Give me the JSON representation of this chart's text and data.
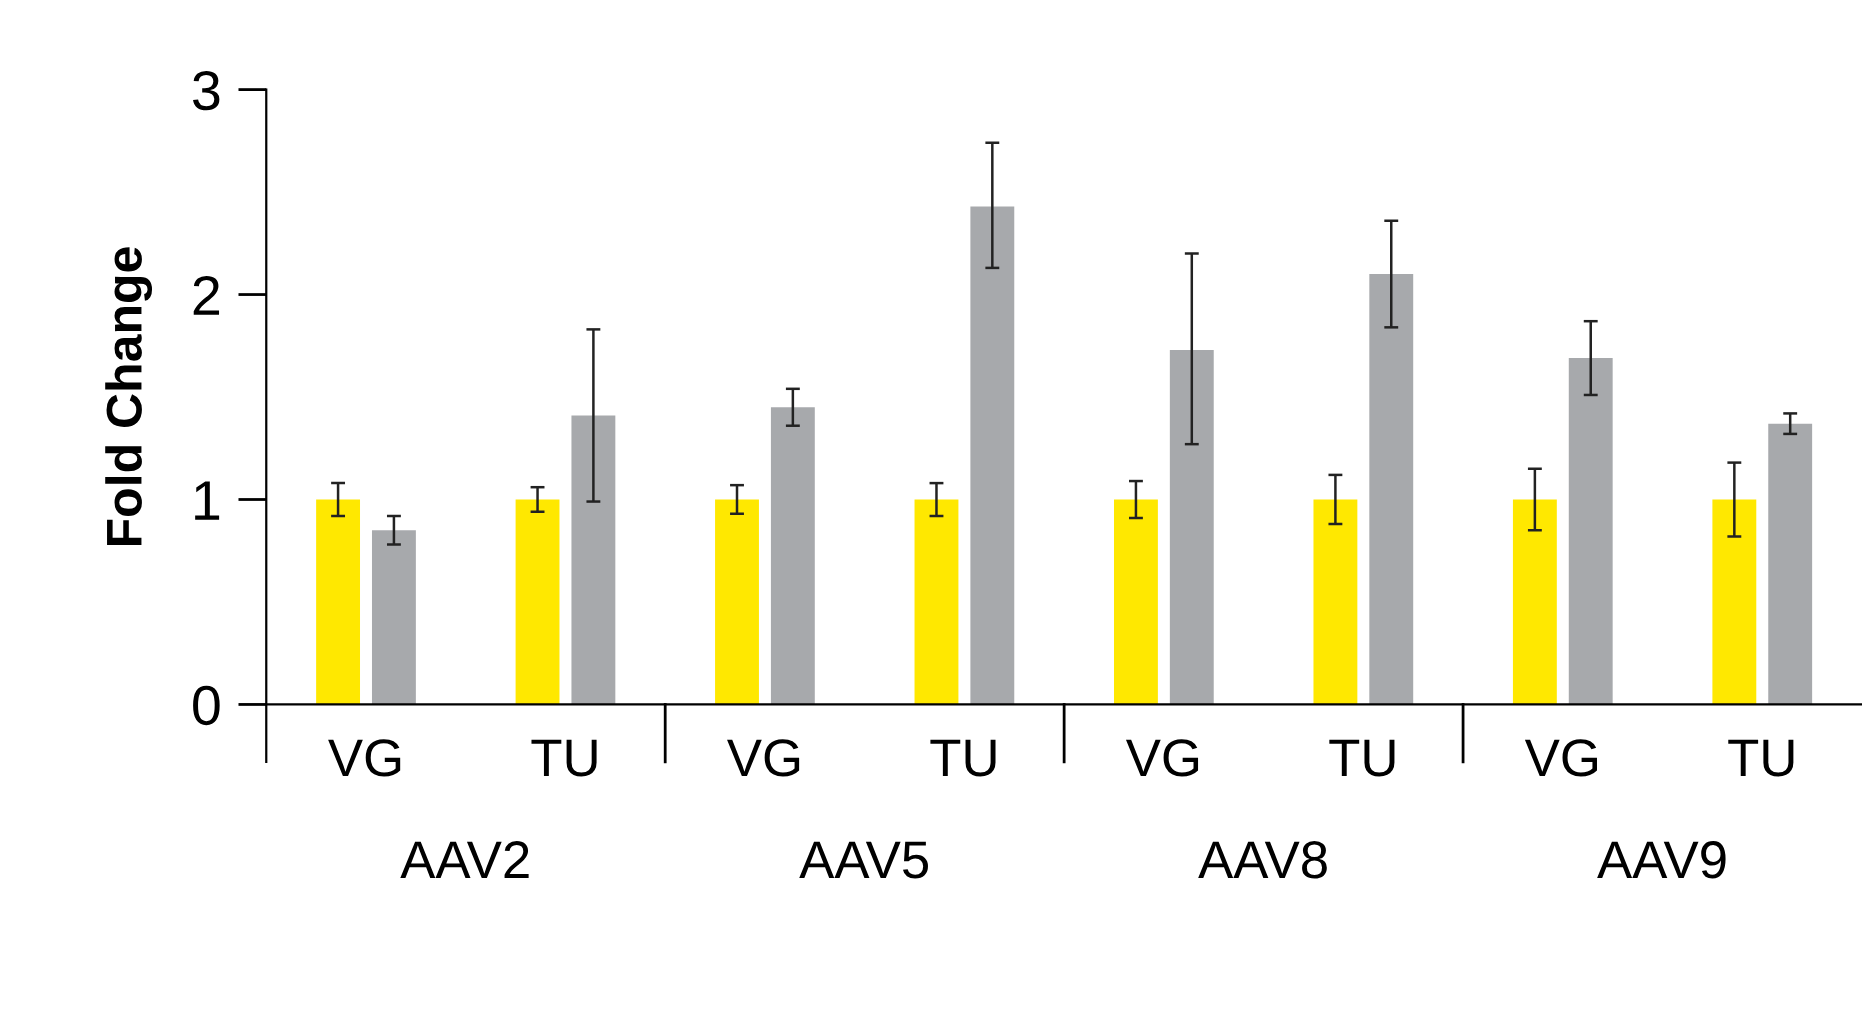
{
  "chart_data": {
    "type": "bar",
    "ylabel": "Fold Change",
    "categories": [
      "VG",
      "TU",
      "VG",
      "TU",
      "VG",
      "TU",
      "VG",
      "TU"
    ],
    "annotations": [
      "AAV2",
      "AAV5",
      "AAV8",
      "AAV9"
    ],
    "series": [
      {
        "color": "#ffe800",
        "values": [
          1,
          1,
          1,
          1,
          1,
          1,
          1,
          1
        ],
        "errors": [
          [
            0.92,
            1.08
          ],
          [
            0.94,
            1.06
          ],
          [
            0.93,
            1.07
          ],
          [
            0.92,
            1.08
          ],
          [
            0.91,
            1.09
          ],
          [
            0.88,
            1.12
          ],
          [
            0.85,
            1.15
          ],
          [
            0.82,
            1.18
          ]
        ]
      },
      {
        "color": "#a7a9ac",
        "values": [
          0.85,
          1.41,
          1.45,
          2.43,
          1.73,
          2.1,
          1.69,
          1.37
        ],
        "errors": [
          [
            0.78,
            0.92
          ],
          [
            0.99,
            1.83
          ],
          [
            1.36,
            1.54
          ],
          [
            2.13,
            2.74
          ],
          [
            1.27,
            2.2
          ],
          [
            1.84,
            2.36
          ],
          [
            1.51,
            1.87
          ],
          [
            1.32,
            1.42
          ]
        ]
      }
    ],
    "ylim": [
      0,
      3
    ],
    "yticks": [
      0,
      1,
      2,
      3
    ],
    "grid": false,
    "legend": false
  }
}
